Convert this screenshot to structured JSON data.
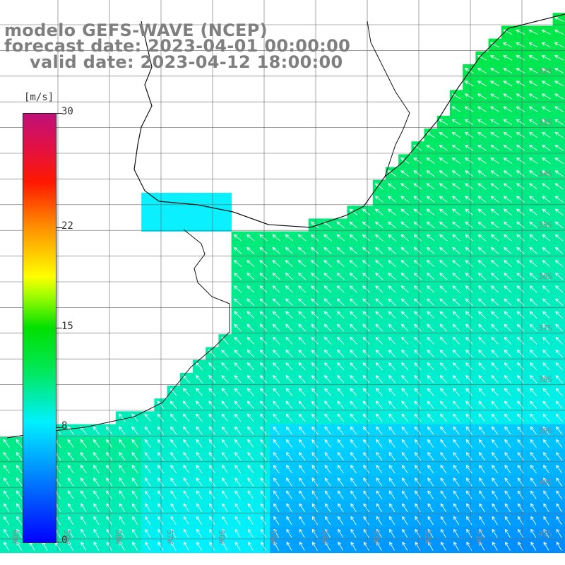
{
  "title": {
    "line1": "modelo GEFS-WAVE (NCEP)",
    "line2": "forecast date: 2023-04-01 00:00:00",
    "line3": "valid date: 2023-04-12 18:00:00"
  },
  "colorbar": {
    "unit": "[m/s]",
    "ticks": [
      {
        "label": "30",
        "value": 30
      },
      {
        "label": "22",
        "value": 22
      },
      {
        "label": "15",
        "value": 15
      },
      {
        "label": "8",
        "value": 8
      },
      {
        "label": "0",
        "value": 0
      }
    ]
  },
  "map": {
    "lat_labels": [
      "32S",
      "33S",
      "34S",
      "35S",
      "36S",
      "37S",
      "38S",
      "39S",
      "40S",
      "41S"
    ],
    "lon_labels": [
      "60W",
      "59W",
      "58W",
      "57W",
      "56W",
      "55W",
      "54W",
      "53W",
      "52W",
      "51W"
    ],
    "field": "wind speed and direction",
    "prevailing_wind": "from the southeast"
  }
}
